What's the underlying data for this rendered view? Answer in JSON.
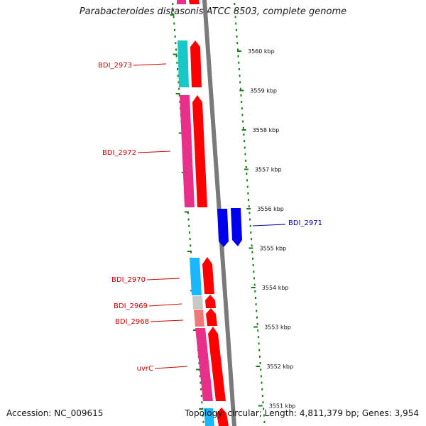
{
  "title": "Parabacteroides distasonis ATCC 8503, complete genome",
  "footer": {
    "accession": "Accession: NC_009615",
    "summary": "Topology: circular; Length: 4,811,379 bp; Genes: 3,954"
  },
  "colors": {
    "backbone": "#7a7a7a",
    "tick": "#1b7a1b",
    "forward_cds": "#ff0000",
    "reverse_cds": "#0000ee",
    "label_forward": "#cc0000",
    "label_reverse": "#0000aa"
  },
  "ruler": [
    {
      "kbp": 3560,
      "label": "3560 kbp"
    },
    {
      "kbp": 3559,
      "label": "3559 kbp"
    },
    {
      "kbp": 3558,
      "label": "3558 kbp"
    },
    {
      "kbp": 3557,
      "label": "3557 kbp"
    },
    {
      "kbp": 3556,
      "label": "3556 kbp"
    },
    {
      "kbp": 3555,
      "label": "3555 kbp"
    },
    {
      "kbp": 3554,
      "label": "3554 kbp"
    },
    {
      "kbp": 3553,
      "label": "3553 kbp"
    },
    {
      "kbp": 3552,
      "label": "3552 kbp"
    },
    {
      "kbp": 3551,
      "label": "3551 kbp"
    }
  ],
  "gene_labels": [
    {
      "name": "BDI_2973",
      "strand": "forward"
    },
    {
      "name": "BDI_2972",
      "strand": "forward"
    },
    {
      "name": "BDI_2971",
      "strand": "reverse"
    },
    {
      "name": "BDI_2970",
      "strand": "forward"
    },
    {
      "name": "BDI_2969",
      "strand": "forward"
    },
    {
      "name": "BDI_2968",
      "strand": "forward"
    },
    {
      "name": "uvrC",
      "strand": "forward"
    }
  ]
}
